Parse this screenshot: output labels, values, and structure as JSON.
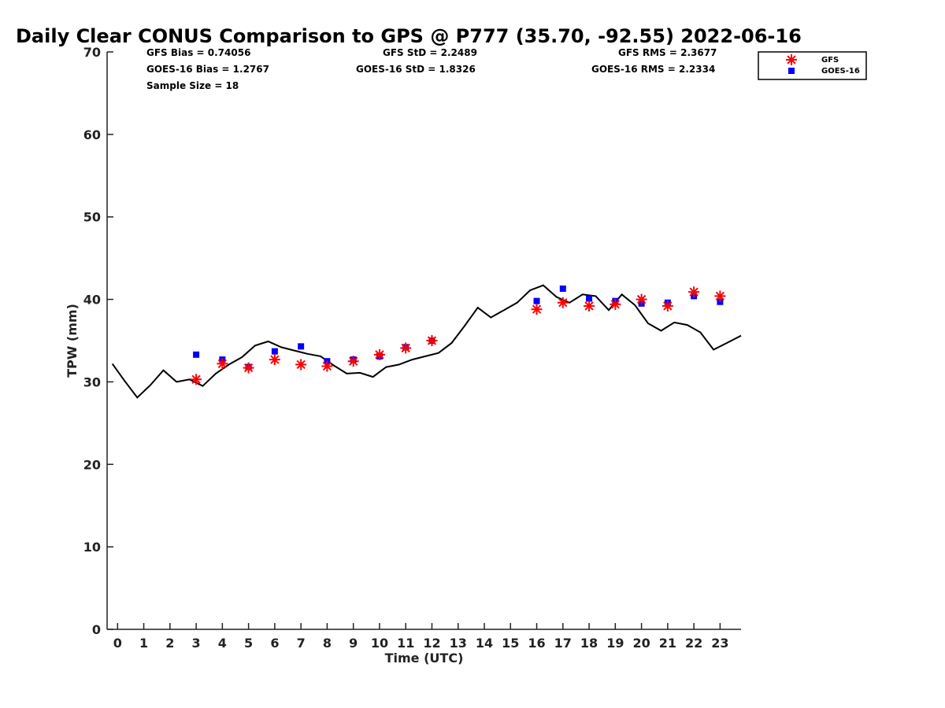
{
  "chart_data": {
    "type": "scatter",
    "title": "Daily Clear CONUS Comparison to GPS @ P777 (35.70, -92.55) 2022-06-16",
    "xlabel": "Time (UTC)",
    "ylabel": "TPW (mm)",
    "xlim": [
      -0.4,
      23.8
    ],
    "ylim": [
      0,
      70
    ],
    "x_ticks": [
      0,
      1,
      2,
      3,
      4,
      5,
      6,
      7,
      8,
      9,
      10,
      11,
      12,
      13,
      14,
      15,
      16,
      17,
      18,
      19,
      20,
      21,
      22,
      23
    ],
    "y_ticks": [
      0,
      10,
      20,
      30,
      40,
      50,
      60,
      70
    ],
    "grid": false,
    "legend_position": "top-right, outside plot",
    "stats": [
      "GFS Bias = 0.74056",
      "GOES-16 Bias = 1.2767",
      "Sample Size = 18",
      "GFS StD = 2.2489",
      "GOES-16 StD = 1.8326",
      "GFS RMS = 2.3677",
      "GOES-16 RMS = 2.2334"
    ],
    "series": [
      {
        "name": "GFS",
        "marker": "asterisk",
        "color": "#ff0000",
        "points": [
          [
            3,
            30.3
          ],
          [
            4,
            32.2
          ],
          [
            5,
            31.7
          ],
          [
            6,
            32.7
          ],
          [
            7,
            32.1
          ],
          [
            8,
            31.9
          ],
          [
            9,
            32.5
          ],
          [
            10,
            33.3
          ],
          [
            11,
            34.1
          ],
          [
            12,
            35.0
          ],
          [
            16,
            38.8
          ],
          [
            17,
            39.6
          ],
          [
            18,
            39.2
          ],
          [
            19,
            39.4
          ],
          [
            20,
            40.0
          ],
          [
            21,
            39.2
          ],
          [
            22,
            40.9
          ],
          [
            23,
            40.4
          ]
        ]
      },
      {
        "name": "GOES-16",
        "marker": "square",
        "color": "#0000ff",
        "points": [
          [
            3,
            33.3
          ],
          [
            4,
            32.7
          ],
          [
            5,
            31.8
          ],
          [
            6,
            33.7
          ],
          [
            7,
            34.3
          ],
          [
            8,
            32.5
          ],
          [
            9,
            32.7
          ],
          [
            10,
            33.1
          ],
          [
            11,
            34.2
          ],
          [
            12,
            35.0
          ],
          [
            16,
            39.8
          ],
          [
            17,
            41.3
          ],
          [
            18,
            40.1
          ],
          [
            19,
            39.8
          ],
          [
            20,
            39.5
          ],
          [
            21,
            39.6
          ],
          [
            22,
            40.4
          ],
          [
            23,
            39.7
          ]
        ]
      },
      {
        "marker": "line",
        "color": "#000000",
        "points": [
          [
            -0.2,
            32.2
          ],
          [
            0.25,
            30.2
          ],
          [
            0.75,
            28.1
          ],
          [
            1.25,
            29.6
          ],
          [
            1.75,
            31.4
          ],
          [
            2.25,
            30.0
          ],
          [
            2.75,
            30.3
          ],
          [
            3.25,
            29.5
          ],
          [
            3.75,
            31.0
          ],
          [
            4.25,
            32.1
          ],
          [
            4.75,
            33.0
          ],
          [
            5.25,
            34.4
          ],
          [
            5.75,
            34.9
          ],
          [
            6.25,
            34.2
          ],
          [
            6.75,
            33.8
          ],
          [
            7.25,
            33.4
          ],
          [
            7.75,
            33.1
          ],
          [
            8.25,
            32.0
          ],
          [
            8.75,
            31.0
          ],
          [
            9.25,
            31.1
          ],
          [
            9.75,
            30.6
          ],
          [
            10.25,
            31.8
          ],
          [
            10.75,
            32.1
          ],
          [
            11.25,
            32.7
          ],
          [
            11.75,
            33.1
          ],
          [
            12.25,
            33.5
          ],
          [
            12.75,
            34.7
          ],
          [
            13.25,
            36.8
          ],
          [
            13.75,
            39.0
          ],
          [
            14.25,
            37.8
          ],
          [
            14.75,
            38.7
          ],
          [
            15.25,
            39.6
          ],
          [
            15.75,
            41.1
          ],
          [
            16.25,
            41.7
          ],
          [
            16.75,
            40.3
          ],
          [
            17.25,
            39.6
          ],
          [
            17.75,
            40.6
          ],
          [
            18.25,
            40.4
          ],
          [
            18.75,
            38.7
          ],
          [
            19.25,
            40.6
          ],
          [
            19.75,
            39.3
          ],
          [
            20.25,
            37.1
          ],
          [
            20.75,
            36.2
          ],
          [
            21.25,
            37.2
          ],
          [
            21.75,
            36.9
          ],
          [
            22.25,
            36.0
          ],
          [
            22.75,
            33.9
          ],
          [
            23.25,
            34.7
          ],
          [
            23.8,
            35.6
          ]
        ]
      }
    ]
  }
}
